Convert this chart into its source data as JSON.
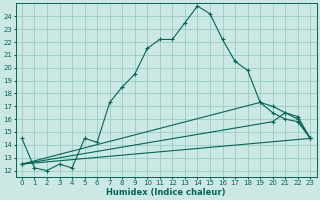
{
  "xlabel": "Humidex (Indice chaleur)",
  "bg_color": "#cce8e4",
  "grid_color": "#99ccc4",
  "line_color": "#006655",
  "xlim": [
    -0.5,
    23.5
  ],
  "ylim": [
    11.5,
    25.0
  ],
  "xticks": [
    0,
    1,
    2,
    3,
    4,
    5,
    6,
    7,
    8,
    9,
    10,
    11,
    12,
    13,
    14,
    15,
    16,
    17,
    18,
    19,
    20,
    21,
    22,
    23
  ],
  "yticks": [
    12,
    13,
    14,
    15,
    16,
    17,
    18,
    19,
    20,
    21,
    22,
    23,
    24
  ],
  "line1_x": [
    0,
    1,
    2,
    3,
    4,
    5,
    6,
    7,
    8,
    9,
    10,
    11,
    12,
    13,
    14,
    15,
    16,
    17,
    18,
    19,
    20,
    21,
    22,
    23
  ],
  "line1_y": [
    14.5,
    12.2,
    12.0,
    12.5,
    12.2,
    14.5,
    14.2,
    17.3,
    18.5,
    19.5,
    21.5,
    22.2,
    22.2,
    23.5,
    24.8,
    24.2,
    22.2,
    20.5,
    19.8,
    17.3,
    16.5,
    16.0,
    15.8,
    14.5
  ],
  "line2_x": [
    0,
    23
  ],
  "line2_y": [
    12.5,
    14.5
  ],
  "line3_x": [
    0,
    20,
    21,
    22,
    23
  ],
  "line3_y": [
    12.5,
    15.8,
    16.5,
    16.2,
    14.5
  ],
  "line4_x": [
    0,
    19,
    20,
    21,
    22,
    23
  ],
  "line4_y": [
    12.5,
    17.3,
    17.0,
    16.5,
    16.0,
    14.5
  ]
}
